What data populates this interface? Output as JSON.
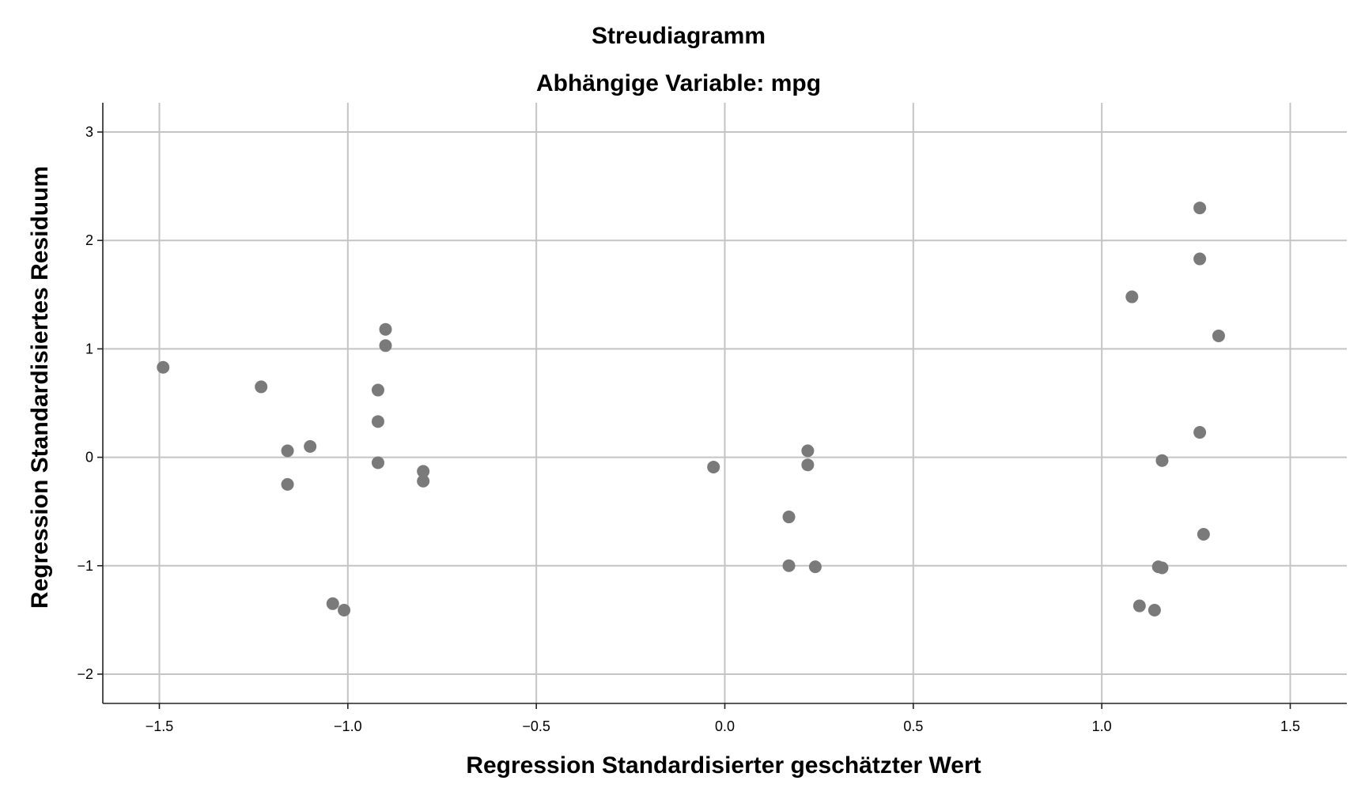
{
  "chart_data": {
    "type": "scatter",
    "title": "Streudiagramm",
    "subtitle": "Abhängige Variable: mpg",
    "xlabel": "Regression Standardisierter geschätzter Wert",
    "ylabel": "Regression Standardisiertes Residuum",
    "xlim": [
      -1.65,
      1.65
    ],
    "ylim": [
      -2.27,
      3.27
    ],
    "x_ticks": [
      -1.5,
      -1.0,
      -0.5,
      0.0,
      0.5,
      1.0,
      1.5
    ],
    "x_tick_labels": [
      "-1.5",
      "-1.0",
      "-0.5",
      "0.0",
      "0.5",
      "1.0",
      "1.5"
    ],
    "y_ticks": [
      3,
      2,
      1,
      0,
      -1,
      -2
    ],
    "y_tick_labels": [
      "3",
      "2",
      "1",
      "0",
      "-1",
      "-2"
    ],
    "grid": true,
    "marker_color": "#7a7a7a",
    "points": [
      {
        "x": -1.49,
        "y": 0.83
      },
      {
        "x": -1.23,
        "y": 0.65
      },
      {
        "x": -1.16,
        "y": 0.06
      },
      {
        "x": -1.16,
        "y": -0.25
      },
      {
        "x": -1.1,
        "y": 0.1
      },
      {
        "x": -1.04,
        "y": -1.35
      },
      {
        "x": -1.01,
        "y": -1.41
      },
      {
        "x": -0.92,
        "y": 0.62
      },
      {
        "x": -0.92,
        "y": 0.33
      },
      {
        "x": -0.92,
        "y": -0.05
      },
      {
        "x": -0.9,
        "y": 1.18
      },
      {
        "x": -0.9,
        "y": 1.03
      },
      {
        "x": -0.8,
        "y": -0.13
      },
      {
        "x": -0.8,
        "y": -0.22
      },
      {
        "x": -0.03,
        "y": -0.09
      },
      {
        "x": 0.17,
        "y": -0.55
      },
      {
        "x": 0.17,
        "y": -1.0
      },
      {
        "x": 0.22,
        "y": 0.06
      },
      {
        "x": 0.22,
        "y": -0.07
      },
      {
        "x": 0.24,
        "y": -1.01
      },
      {
        "x": 1.08,
        "y": 1.48
      },
      {
        "x": 1.1,
        "y": -1.37
      },
      {
        "x": 1.14,
        "y": -1.41
      },
      {
        "x": 1.15,
        "y": -1.01
      },
      {
        "x": 1.16,
        "y": -1.02
      },
      {
        "x": 1.16,
        "y": -0.03
      },
      {
        "x": 1.26,
        "y": 2.3
      },
      {
        "x": 1.26,
        "y": 1.83
      },
      {
        "x": 1.26,
        "y": 0.23
      },
      {
        "x": 1.27,
        "y": -0.71
      },
      {
        "x": 1.31,
        "y": 1.12
      }
    ]
  }
}
